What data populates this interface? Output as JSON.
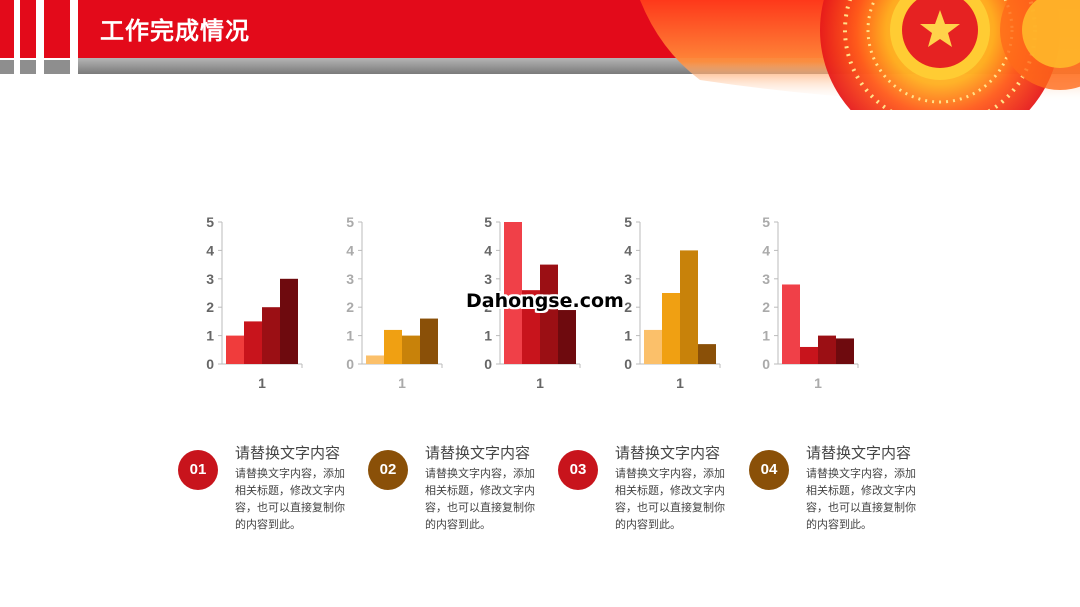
{
  "header": {
    "title": "工作完成情况",
    "colors": {
      "primary": "#e30a1a",
      "gray": "#8e8e8e",
      "gold": "#f5c23a"
    }
  },
  "watermark": "Dahongse.com",
  "chart_data": [
    {
      "type": "bar",
      "categories": [
        "1"
      ],
      "ylim": [
        0,
        5
      ],
      "yticks": [
        "0",
        "1",
        "2",
        "3",
        "4",
        "5"
      ],
      "series": [
        {
          "values": [
            1.0
          ],
          "color": "#f03c3c"
        },
        {
          "values": [
            1.5
          ],
          "color": "#c8141c"
        },
        {
          "values": [
            2.0
          ],
          "color": "#9b0f14"
        },
        {
          "values": [
            3.0
          ],
          "color": "#6e0a0e"
        }
      ]
    },
    {
      "type": "bar",
      "categories": [
        "1"
      ],
      "ylim": [
        0,
        5
      ],
      "yticks": [
        "0",
        "1",
        "2",
        "3",
        "4",
        "5"
      ],
      "series": [
        {
          "values": [
            0.3
          ],
          "color": "#fbc06a"
        },
        {
          "values": [
            1.2
          ],
          "color": "#f0a012"
        },
        {
          "values": [
            1.0
          ],
          "color": "#c8820a"
        },
        {
          "values": [
            1.6
          ],
          "color": "#8a5008"
        }
      ]
    },
    {
      "type": "bar",
      "categories": [
        "1"
      ],
      "ylim": [
        0,
        5
      ],
      "yticks": [
        "0",
        "1",
        "2",
        "3",
        "4",
        "5"
      ],
      "series": [
        {
          "values": [
            5.0
          ],
          "color": "#f04048"
        },
        {
          "values": [
            2.6
          ],
          "color": "#c8141c"
        },
        {
          "values": [
            3.5
          ],
          "color": "#9b0f14"
        },
        {
          "values": [
            1.9
          ],
          "color": "#6e0a0e"
        }
      ]
    },
    {
      "type": "bar",
      "categories": [
        "1"
      ],
      "ylim": [
        0,
        5
      ],
      "yticks": [
        "0",
        "1",
        "2",
        "3",
        "4",
        "5"
      ],
      "series": [
        {
          "values": [
            1.2
          ],
          "color": "#fbc06a"
        },
        {
          "values": [
            2.5
          ],
          "color": "#f0a012"
        },
        {
          "values": [
            4.0
          ],
          "color": "#c8820a"
        },
        {
          "values": [
            0.7
          ],
          "color": "#8a5008"
        }
      ]
    },
    {
      "type": "bar",
      "categories": [
        "1"
      ],
      "ylim": [
        0,
        5
      ],
      "yticks": [
        "0",
        "1",
        "2",
        "3",
        "4",
        "5"
      ],
      "series": [
        {
          "values": [
            2.8
          ],
          "color": "#f04048"
        },
        {
          "values": [
            0.6
          ],
          "color": "#c8141c"
        },
        {
          "values": [
            1.0
          ],
          "color": "#9b0f14"
        },
        {
          "values": [
            0.9
          ],
          "color": "#6e0a0e"
        }
      ]
    }
  ],
  "items": [
    {
      "num": "01",
      "title": "请替换文字内容",
      "desc": "请替换文字内容，添加相关标题，修改文字内容，也可以直接复制你的内容到此。",
      "color": "#c8141c"
    },
    {
      "num": "02",
      "title": "请替换文字内容",
      "desc": "请替换文字内容，添加相关标题，修改文字内容，也可以直接复制你的内容到此。",
      "color": "#8a5008"
    },
    {
      "num": "03",
      "title": "请替换文字内容",
      "desc": "请替换文字内容，添加相关标题，修改文字内容，也可以直接复制你的内容到此。",
      "color": "#c8141c"
    },
    {
      "num": "04",
      "title": "请替换文字内容",
      "desc": "请替换文字内容，添加相关标题，修改文字内容，也可以直接复制你的内容到此。",
      "color": "#8a5008"
    }
  ]
}
